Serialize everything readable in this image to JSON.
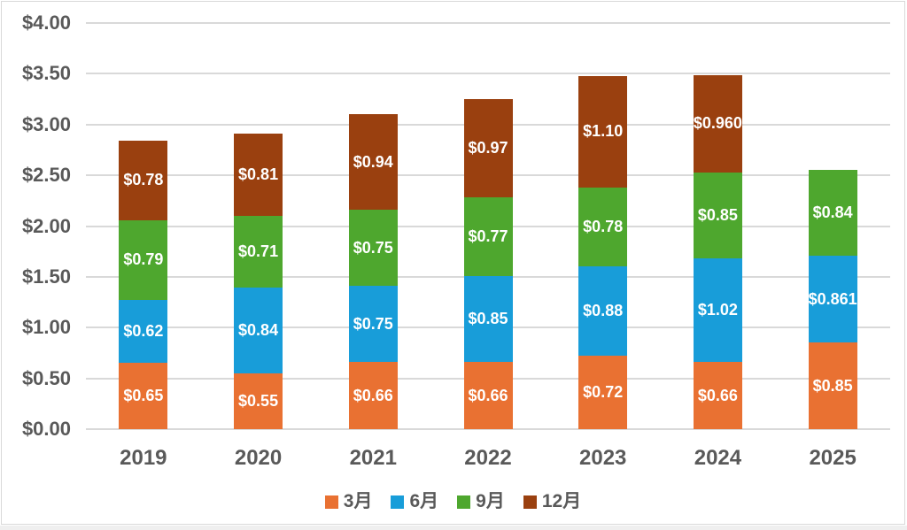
{
  "chart_data": {
    "type": "bar",
    "stacked": true,
    "categories": [
      "2019",
      "2020",
      "2021",
      "2022",
      "2023",
      "2024",
      "2025"
    ],
    "series": [
      {
        "name": "3月",
        "color": "#E97132",
        "values": [
          0.65,
          0.55,
          0.66,
          0.66,
          0.72,
          0.66,
          0.85
        ],
        "labels": [
          "$0.65",
          "$0.55",
          "$0.66",
          "$0.66",
          "$0.72",
          "$0.66",
          "$0.85"
        ]
      },
      {
        "name": "6月",
        "color": "#189DD9",
        "values": [
          0.62,
          0.84,
          0.75,
          0.85,
          0.88,
          1.02,
          0.861
        ],
        "labels": [
          "$0.62",
          "$0.84",
          "$0.75",
          "$0.85",
          "$0.88",
          "$1.02",
          "$0.861"
        ]
      },
      {
        "name": "9月",
        "color": "#4EA72E",
        "values": [
          0.79,
          0.71,
          0.75,
          0.77,
          0.78,
          0.85,
          0.84
        ],
        "labels": [
          "$0.79",
          "$0.71",
          "$0.75",
          "$0.77",
          "$0.78",
          "$0.85",
          "$0.84"
        ]
      },
      {
        "name": "12月",
        "color": "#9A400F",
        "values": [
          0.78,
          0.81,
          0.94,
          0.97,
          1.1,
          0.96,
          null
        ],
        "labels": [
          "$0.78",
          "$0.81",
          "$0.94",
          "$0.97",
          "$1.10",
          "$0.960",
          null
        ]
      }
    ],
    "ylim": [
      0,
      4
    ],
    "ytick_values": [
      0,
      0.5,
      1,
      1.5,
      2,
      2.5,
      3,
      3.5,
      4
    ],
    "ytick_labels": [
      "$0.00",
      "$0.50",
      "$1.00",
      "$1.50",
      "$2.00",
      "$2.50",
      "$3.00",
      "$3.50",
      "$4.00"
    ],
    "grid": true,
    "legend_position": "bottom",
    "legend_entries": [
      "3月",
      "6月",
      "9月",
      "12月"
    ],
    "text_color": "#595959",
    "gridline_color": "#D9D9D9",
    "value_label_color": "#FFFFFF"
  }
}
